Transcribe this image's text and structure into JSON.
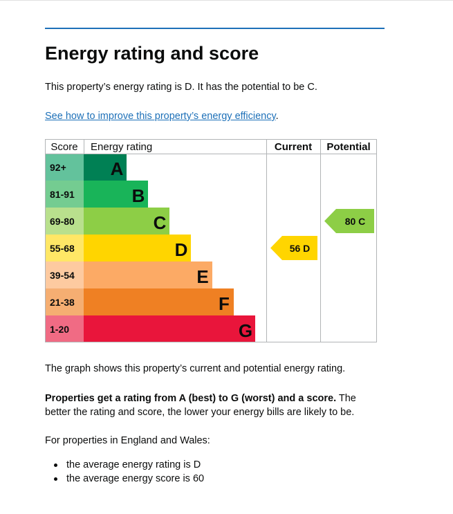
{
  "section": {
    "title": "Energy rating and score",
    "intro": "This property’s energy rating is D. It has the potential to be C.",
    "improve_link": "See how to improve this property’s energy efficiency",
    "improve_link_suffix": "."
  },
  "chart_data": {
    "type": "table",
    "headers": {
      "score": "Score",
      "rating": "Energy rating",
      "current": "Current",
      "potential": "Potential"
    },
    "bands": [
      {
        "score": "92+",
        "letter": "A",
        "color": "#008054",
        "score_bg": "#63c29c"
      },
      {
        "score": "81-91",
        "letter": "B",
        "color": "#19b459",
        "score_bg": "#74cc91"
      },
      {
        "score": "69-80",
        "letter": "C",
        "color": "#8dce46",
        "score_bg": "#b9e08d"
      },
      {
        "score": "55-68",
        "letter": "D",
        "color": "#ffd500",
        "score_bg": "#ffe766"
      },
      {
        "score": "39-54",
        "letter": "E",
        "color": "#fcaa65",
        "score_bg": "#fdcaa0"
      },
      {
        "score": "21-38",
        "letter": "F",
        "color": "#ef8023",
        "score_bg": "#f5ae72"
      },
      {
        "score": "1-20",
        "letter": "G",
        "color": "#e9153b",
        "score_bg": "#f06b84"
      }
    ],
    "current": {
      "value": 56,
      "letter": "D",
      "label": "56  D"
    },
    "potential": {
      "value": 80,
      "letter": "C",
      "label": "80  C"
    }
  },
  "caption": "The graph shows this property’s current and potential energy rating.",
  "explanation": {
    "bold": "Properties get a rating from A (best) to G (worst) and a score.",
    "rest": " The better the rating and score, the lower your energy bills are likely to be."
  },
  "averages": {
    "heading": "For properties in England and Wales:",
    "items": [
      "the average energy rating is D",
      "the average energy score is 60"
    ]
  }
}
